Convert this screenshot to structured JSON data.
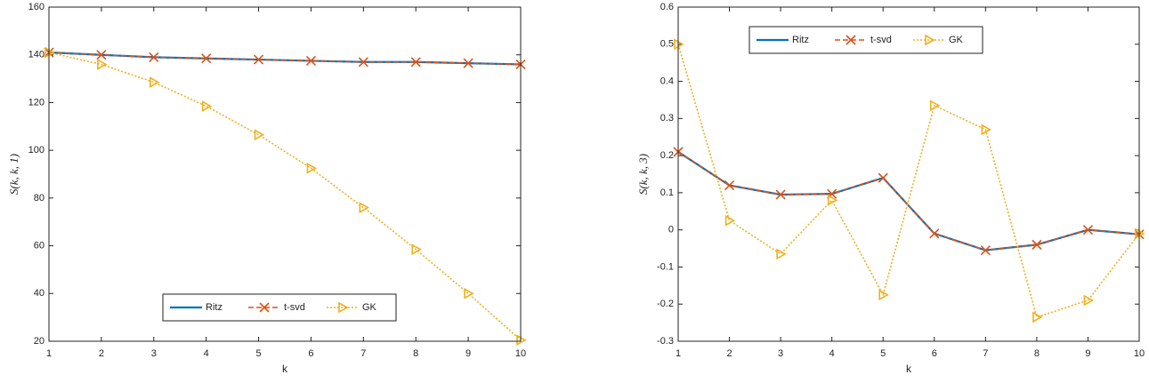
{
  "chart_data": [
    {
      "type": "line",
      "xlabel": "k",
      "ylabel": "S(k, k, 1)",
      "x": [
        1,
        2,
        3,
        4,
        5,
        6,
        7,
        8,
        9,
        10
      ],
      "xlim": [
        1,
        10
      ],
      "xticks": [
        1,
        2,
        3,
        4,
        5,
        6,
        7,
        8,
        9,
        10
      ],
      "ylim": [
        20,
        160
      ],
      "yticks": [
        20,
        40,
        60,
        80,
        100,
        120,
        140,
        160
      ],
      "legend": "lower center",
      "series": [
        {
          "name": "Ritz",
          "color": "#0072bd",
          "linestyle": "solid",
          "marker": "none",
          "values": [
            141,
            140,
            139,
            138.5,
            138,
            137.5,
            137,
            137,
            136.5,
            136
          ]
        },
        {
          "name": "t-svd",
          "color": "#d95319",
          "linestyle": "dashed",
          "marker": "x",
          "values": [
            141,
            140,
            139,
            138.5,
            138,
            137.5,
            137,
            137,
            136.5,
            136
          ]
        },
        {
          "name": "GK",
          "color": "#edb120",
          "linestyle": "dotted",
          "marker": "triangle-right",
          "values": [
            141,
            136,
            128.5,
            118.5,
            106.5,
            92.5,
            76,
            58.5,
            40,
            20.5
          ]
        }
      ]
    },
    {
      "type": "line",
      "xlabel": "k",
      "ylabel": "S(k, k, 3)",
      "x": [
        1,
        2,
        3,
        4,
        5,
        6,
        7,
        8,
        9,
        10
      ],
      "xlim": [
        1,
        10
      ],
      "xticks": [
        1,
        2,
        3,
        4,
        5,
        6,
        7,
        8,
        9,
        10
      ],
      "ylim": [
        -0.3,
        0.6
      ],
      "yticks": [
        -0.3,
        -0.2,
        -0.1,
        0,
        0.1,
        0.2,
        0.3,
        0.4,
        0.5,
        0.6
      ],
      "legend": "upper center",
      "series": [
        {
          "name": "Ritz",
          "color": "#0072bd",
          "linestyle": "solid",
          "marker": "none",
          "values": [
            0.21,
            0.12,
            0.095,
            0.097,
            0.14,
            -0.01,
            -0.055,
            -0.04,
            0,
            -0.012
          ]
        },
        {
          "name": "t-svd",
          "color": "#d95319",
          "linestyle": "dashed",
          "marker": "x",
          "values": [
            0.21,
            0.12,
            0.095,
            0.097,
            0.14,
            -0.01,
            -0.055,
            -0.04,
            0,
            -0.012
          ]
        },
        {
          "name": "GK",
          "color": "#edb120",
          "linestyle": "dotted",
          "marker": "triangle-right",
          "values": [
            0.5,
            0.025,
            -0.065,
            0.08,
            -0.175,
            0.335,
            0.27,
            -0.235,
            -0.19,
            -0.01
          ]
        }
      ]
    }
  ]
}
